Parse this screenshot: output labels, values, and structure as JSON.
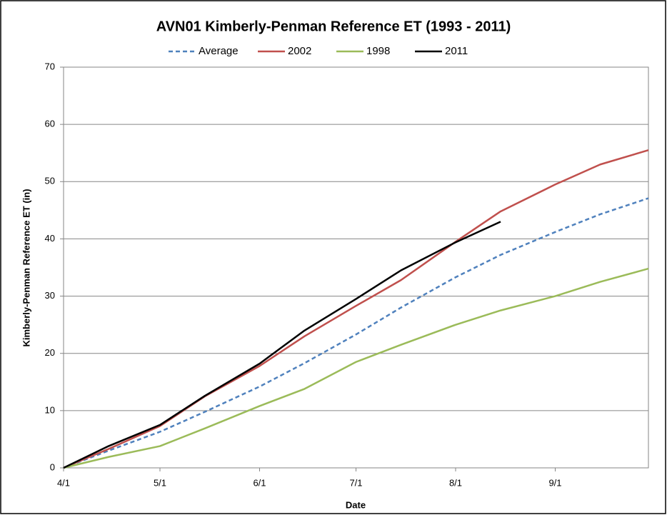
{
  "chart_data": {
    "type": "line",
    "title": "AVN01 Kimberly-Penman Reference ET (1993 - 2011)",
    "x_label": "Date",
    "y_label": "Kimberly-Penman Reference ET (in)",
    "x": [
      "4/1",
      "4/15",
      "5/1",
      "5/15",
      "6/1",
      "6/15",
      "7/1",
      "7/15",
      "8/1",
      "8/15",
      "9/1",
      "9/15",
      "9/30"
    ],
    "xlim": [
      "4/1",
      "9/30"
    ],
    "xticks": [
      "4/1",
      "5/1",
      "6/1",
      "7/1",
      "8/1",
      "9/1"
    ],
    "ylim": [
      0,
      70
    ],
    "yticks": [
      0,
      10,
      20,
      30,
      40,
      50,
      60,
      70
    ],
    "grid": true,
    "legend": "top",
    "series": [
      {
        "name": "Average",
        "color": "#4f81bd",
        "dashed": true,
        "values": [
          0,
          3.0,
          6.3,
          9.8,
          14.2,
          18.3,
          23.3,
          28.0,
          33.3,
          37.2,
          41.2,
          44.3,
          47.1
        ]
      },
      {
        "name": "2002",
        "color": "#c0504d",
        "dashed": false,
        "values": [
          0,
          3.3,
          7.3,
          12.5,
          17.8,
          23.0,
          28.3,
          32.8,
          39.5,
          44.8,
          49.5,
          53.0,
          55.5
        ]
      },
      {
        "name": "1998",
        "color": "#9bbb59",
        "dashed": false,
        "values": [
          0,
          1.9,
          3.8,
          6.9,
          10.8,
          13.8,
          18.5,
          21.5,
          25.0,
          27.5,
          30.0,
          32.5,
          34.8
        ]
      },
      {
        "name": "2011",
        "color": "#000000",
        "dashed": false,
        "values": [
          0,
          3.8,
          7.5,
          12.6,
          18.2,
          24.0,
          29.5,
          34.5,
          39.4,
          43.0,
          null,
          null,
          null
        ]
      }
    ]
  }
}
